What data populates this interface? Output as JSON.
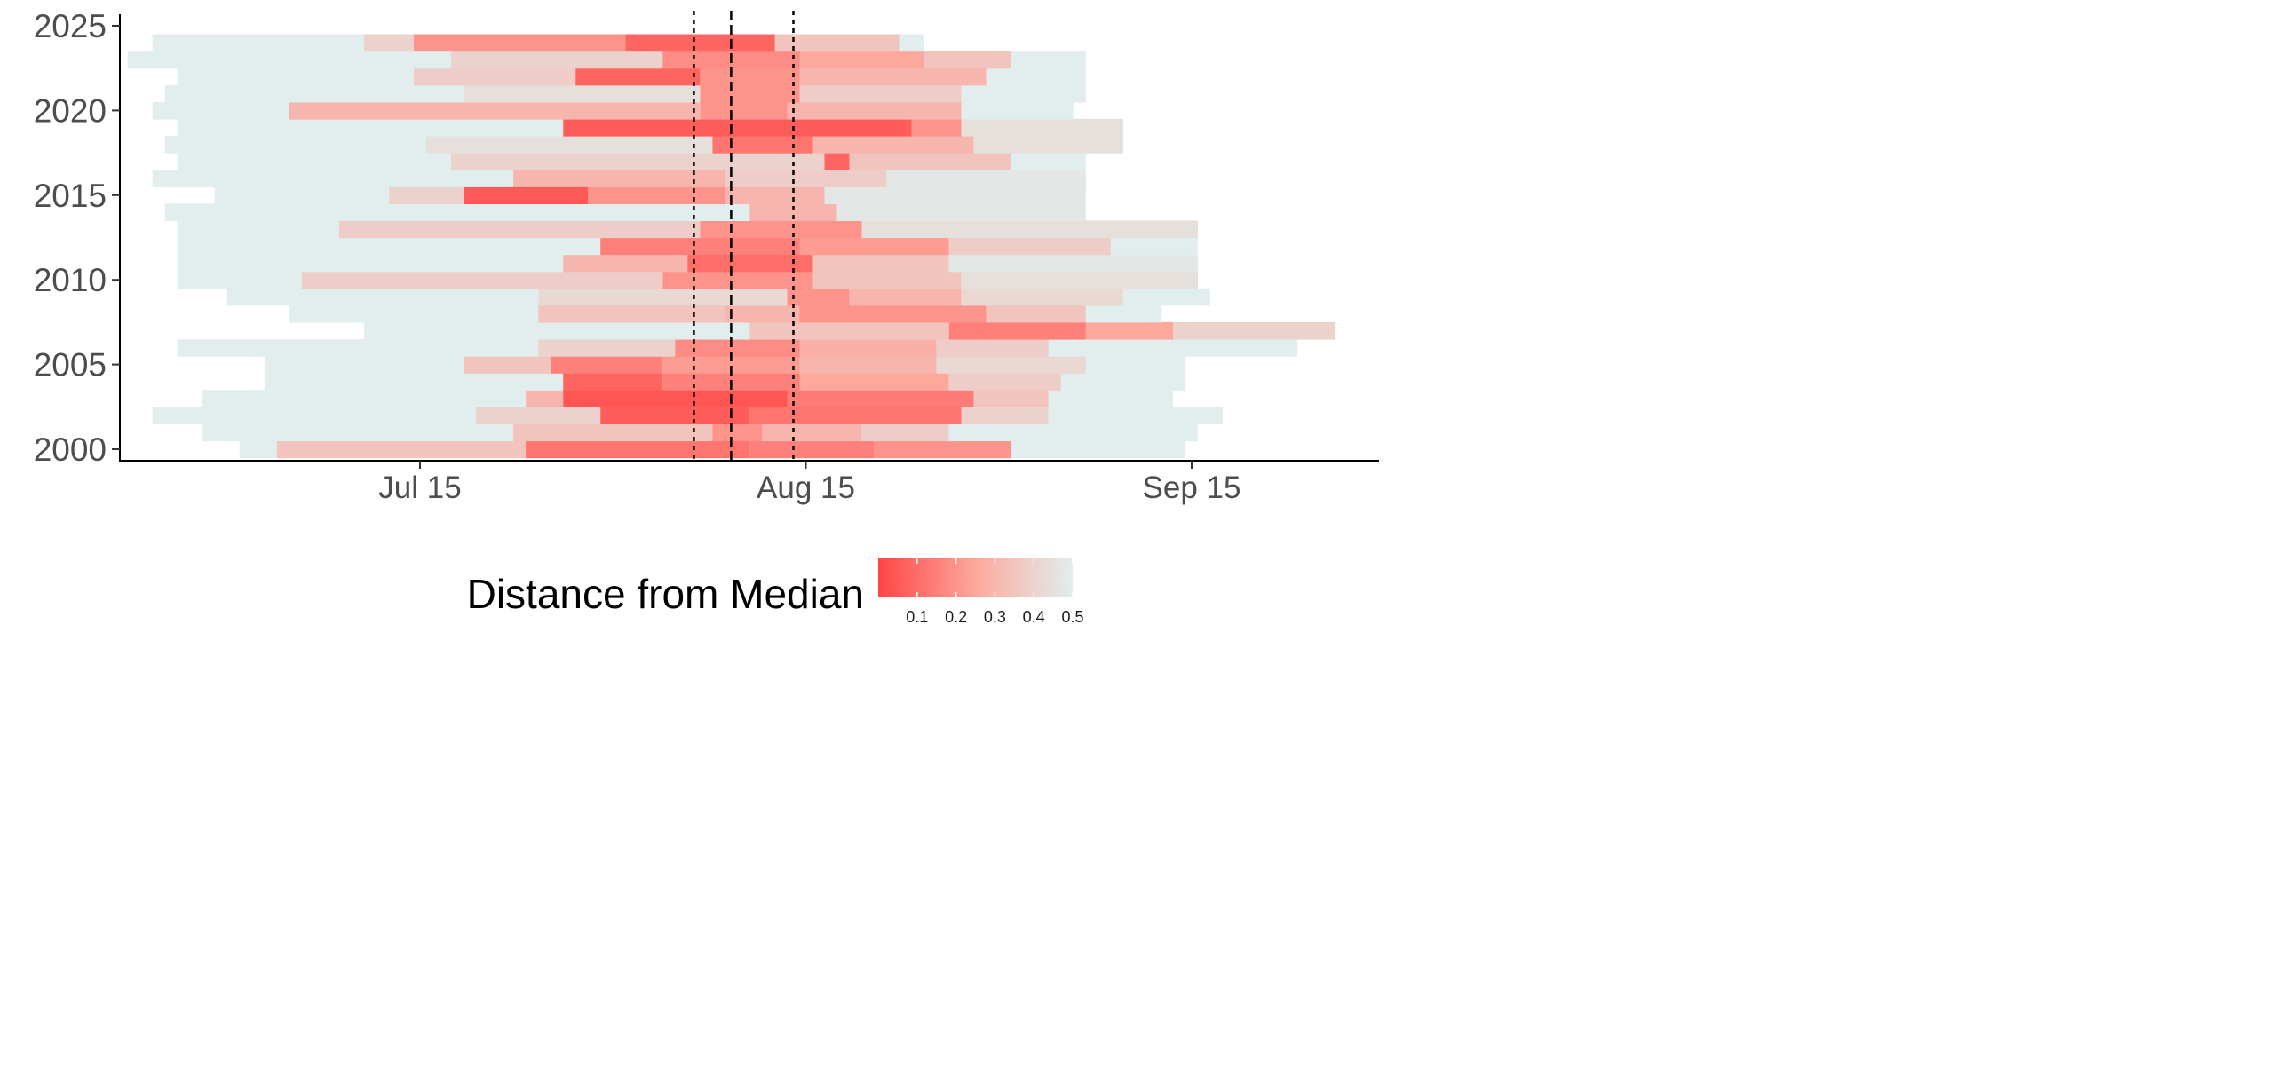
{
  "chart_data": {
    "type": "heatmap",
    "title": "",
    "xlabel": "",
    "ylabel": "",
    "x_axis": {
      "type": "date",
      "ticks": [
        "Jul 15",
        "Aug 15",
        "Sep 15"
      ],
      "range": [
        "Jun 21",
        "Sep 26"
      ]
    },
    "y_axis": {
      "ticks": [
        2000,
        2005,
        2010,
        2015,
        2020,
        2025
      ],
      "range": [
        1999.4,
        2025.8
      ]
    },
    "vlines": [
      {
        "date": "Aug 6",
        "style": "dotted"
      },
      {
        "date": "Aug 9",
        "style": "dashed"
      },
      {
        "date": "Aug 14",
        "style": "dotted"
      }
    ],
    "grid": false,
    "color_scale": {
      "low_color": "#ff4545",
      "high_color": "#e1eeed",
      "limits": [
        0,
        0.5
      ]
    },
    "rows": [
      {
        "year": 2000,
        "cells": [
          [
            "Jul 1",
            "Jul 3",
            0.5
          ],
          [
            "Jul 4",
            "Jul 23",
            0.35
          ],
          [
            "Jul 24",
            "Aug 10",
            0.12
          ],
          [
            "Aug 11",
            "Aug 20",
            0.15
          ],
          [
            "Aug 21",
            "Aug 31",
            0.2
          ],
          [
            "Sep 1",
            "Sep 14",
            0.5
          ]
        ]
      },
      {
        "year": 2001,
        "cells": [
          [
            "Jun 28",
            "Jul 22",
            0.5
          ],
          [
            "Jul 23",
            "Aug 7",
            0.35
          ],
          [
            "Aug 8",
            "Aug 11",
            0.2
          ],
          [
            "Aug 12",
            "Aug 19",
            0.3
          ],
          [
            "Aug 20",
            "Aug 26",
            0.38
          ],
          [
            "Aug 27",
            "Sep 15",
            0.5
          ]
        ]
      },
      {
        "year": 2002,
        "cells": [
          [
            "Jun 24",
            "Jul 19",
            0.5
          ],
          [
            "Jul 20",
            "Jul 29",
            0.4
          ],
          [
            "Jul 30",
            "Aug 10",
            0.06
          ],
          [
            "Aug 11",
            "Aug 27",
            0.12
          ],
          [
            "Aug 28",
            "Sep 3",
            0.4
          ],
          [
            "Sep 4",
            "Sep 17",
            0.5
          ]
        ]
      },
      {
        "year": 2003,
        "cells": [
          [
            "Jun 28",
            "Jul 23",
            0.5
          ],
          [
            "Jul 24",
            "Jul 26",
            0.3
          ],
          [
            "Jul 27",
            "Aug 13",
            0.04
          ],
          [
            "Aug 14",
            "Aug 28",
            0.14
          ],
          [
            "Aug 29",
            "Sep 3",
            0.35
          ],
          [
            "Sep 4",
            "Sep 13",
            0.5
          ]
        ]
      },
      {
        "year": 2004,
        "cells": [
          [
            "Jul 3",
            "Jul 26",
            0.5
          ],
          [
            "Jul 27",
            "Aug 3",
            0.08
          ],
          [
            "Aug 4",
            "Aug 14",
            0.15
          ],
          [
            "Aug 15",
            "Aug 26",
            0.25
          ],
          [
            "Aug 27",
            "Sep 4",
            0.38
          ],
          [
            "Sep 5",
            "Sep 14",
            0.5
          ]
        ]
      },
      {
        "year": 2005,
        "cells": [
          [
            "Jul 3",
            "Jul 18",
            0.5
          ],
          [
            "Jul 19",
            "Jul 25",
            0.35
          ],
          [
            "Jul 26",
            "Aug 3",
            0.15
          ],
          [
            "Aug 4",
            "Aug 14",
            0.22
          ],
          [
            "Aug 15",
            "Aug 25",
            0.3
          ],
          [
            "Aug 26",
            "Sep 6",
            0.42
          ],
          [
            "Sep 7",
            "Sep 14",
            0.5
          ]
        ]
      },
      {
        "year": 2006,
        "cells": [
          [
            "Jun 26",
            "Jul 24",
            0.5
          ],
          [
            "Jul 25",
            "Aug 4",
            0.4
          ],
          [
            "Aug 5",
            "Aug 14",
            0.18
          ],
          [
            "Aug 15",
            "Aug 25",
            0.28
          ],
          [
            "Aug 26",
            "Sep 3",
            0.38
          ],
          [
            "Sep 4",
            "Sep 23",
            0.5
          ]
        ]
      },
      {
        "year": 2007,
        "cells": [
          [
            "Jul 11",
            "Aug 10",
            0.5
          ],
          [
            "Aug 11",
            "Aug 26",
            0.35
          ],
          [
            "Aug 27",
            "Sep 6",
            0.15
          ],
          [
            "Sep 7",
            "Sep 13",
            0.25
          ],
          [
            "Sep 14",
            "Sep 26",
            0.4
          ]
        ]
      },
      {
        "year": 2008,
        "cells": [
          [
            "Jul 5",
            "Jul 24",
            0.5
          ],
          [
            "Jul 25",
            "Aug 8",
            0.35
          ],
          [
            "Aug 9",
            "Aug 14",
            0.3
          ],
          [
            "Aug 15",
            "Aug 29",
            0.2
          ],
          [
            "Aug 30",
            "Sep 6",
            0.35
          ],
          [
            "Sep 7",
            "Sep 12",
            0.5
          ]
        ]
      },
      {
        "year": 2009,
        "cells": [
          [
            "Jun 30",
            "Jul 24",
            0.5
          ],
          [
            "Jul 25",
            "Aug 13",
            0.42
          ],
          [
            "Aug 14",
            "Aug 18",
            0.2
          ],
          [
            "Aug 19",
            "Aug 27",
            0.3
          ],
          [
            "Aug 28",
            "Sep 9",
            0.42
          ],
          [
            "Sep 10",
            "Sep 16",
            0.5
          ]
        ]
      },
      {
        "year": 2010,
        "cells": [
          [
            "Jun 26",
            "Jul 5",
            0.5
          ],
          [
            "Jul 6",
            "Aug 3",
            0.38
          ],
          [
            "Aug 4",
            "Aug 15",
            0.2
          ],
          [
            "Aug 16",
            "Aug 27",
            0.35
          ],
          [
            "Aug 28",
            "Sep 15",
            0.45
          ]
        ]
      },
      {
        "year": 2011,
        "cells": [
          [
            "Jun 26",
            "Jul 26",
            0.5
          ],
          [
            "Jul 27",
            "Aug 5",
            0.3
          ],
          [
            "Aug 6",
            "Aug 15",
            0.1
          ],
          [
            "Aug 16",
            "Aug 26",
            0.35
          ],
          [
            "Aug 27",
            "Sep 15",
            0.48
          ]
        ]
      },
      {
        "year": 2012,
        "cells": [
          [
            "Jun 26",
            "Jul 29",
            0.5
          ],
          [
            "Jul 30",
            "Aug 14",
            0.15
          ],
          [
            "Aug 15",
            "Aug 26",
            0.22
          ],
          [
            "Aug 27",
            "Sep 8",
            0.38
          ],
          [
            "Sep 9",
            "Sep 15",
            0.5
          ]
        ]
      },
      {
        "year": 2013,
        "cells": [
          [
            "Jun 26",
            "Jul 8",
            0.5
          ],
          [
            "Jul 9",
            "Aug 6",
            0.38
          ],
          [
            "Aug 7",
            "Aug 19",
            0.2
          ],
          [
            "Aug 20",
            "Sep 15",
            0.45
          ]
        ]
      },
      {
        "year": 2014,
        "cells": [
          [
            "Jun 25",
            "Aug 10",
            0.5
          ],
          [
            "Aug 11",
            "Aug 17",
            0.3
          ],
          [
            "Aug 18",
            "Sep 6",
            0.48
          ]
        ]
      },
      {
        "year": 2015,
        "cells": [
          [
            "Jun 29",
            "Jul 12",
            0.5
          ],
          [
            "Jul 13",
            "Jul 18",
            0.4
          ],
          [
            "Jul 19",
            "Jul 28",
            0.05
          ],
          [
            "Jul 29",
            "Aug 8",
            0.2
          ],
          [
            "Aug 9",
            "Aug 16",
            0.3
          ],
          [
            "Aug 17",
            "Sep 6",
            0.48
          ]
        ]
      },
      {
        "year": 2016,
        "cells": [
          [
            "Jun 24",
            "Jul 22",
            0.5
          ],
          [
            "Jul 23",
            "Aug 8",
            0.3
          ],
          [
            "Aug 9",
            "Aug 21",
            0.38
          ],
          [
            "Aug 22",
            "Sep 6",
            0.48
          ]
        ]
      },
      {
        "year": 2017,
        "cells": [
          [
            "Jun 26",
            "Jul 17",
            0.5
          ],
          [
            "Jul 18",
            "Aug 16",
            0.4
          ],
          [
            "Aug 17",
            "Aug 18",
            0.08
          ],
          [
            "Aug 19",
            "Aug 31",
            0.35
          ],
          [
            "Sep 1",
            "Sep 6",
            0.5
          ]
        ]
      },
      {
        "year": 2018,
        "cells": [
          [
            "Jun 25",
            "Jul 15",
            0.5
          ],
          [
            "Jul 16",
            "Aug 7",
            0.45
          ],
          [
            "Aug 8",
            "Aug 15",
            0.12
          ],
          [
            "Aug 16",
            "Aug 28",
            0.3
          ],
          [
            "Aug 29",
            "Sep 9",
            0.45
          ]
        ]
      },
      {
        "year": 2019,
        "cells": [
          [
            "Jun 26",
            "Jul 26",
            0.5
          ],
          [
            "Jul 27",
            "Aug 23",
            0.06
          ],
          [
            "Aug 24",
            "Aug 27",
            0.2
          ],
          [
            "Aug 28",
            "Sep 9",
            0.45
          ]
        ]
      },
      {
        "year": 2020,
        "cells": [
          [
            "Jun 24",
            "Jul 4",
            0.5
          ],
          [
            "Jul 5",
            "Aug 6",
            0.3
          ],
          [
            "Aug 7",
            "Aug 13",
            0.2
          ],
          [
            "Aug 14",
            "Aug 27",
            0.3
          ],
          [
            "Aug 28",
            "Sep 5",
            0.5
          ]
        ]
      },
      {
        "year": 2021,
        "cells": [
          [
            "Jun 25",
            "Jul 18",
            0.5
          ],
          [
            "Jul 19",
            "Aug 6",
            0.45
          ],
          [
            "Aug 7",
            "Aug 14",
            0.2
          ],
          [
            "Aug 15",
            "Aug 27",
            0.38
          ],
          [
            "Aug 28",
            "Sep 6",
            0.5
          ]
        ]
      },
      {
        "year": 2022,
        "cells": [
          [
            "Jun 26",
            "Jul 14",
            0.5
          ],
          [
            "Jul 15",
            "Jul 27",
            0.38
          ],
          [
            "Jul 28",
            "Aug 6",
            0.08
          ],
          [
            "Aug 7",
            "Aug 14",
            0.2
          ],
          [
            "Aug 15",
            "Aug 29",
            0.3
          ],
          [
            "Aug 30",
            "Sep 6",
            0.5
          ]
        ]
      },
      {
        "year": 2023,
        "cells": [
          [
            "Jun 22",
            "Jul 17",
            0.5
          ],
          [
            "Jul 18",
            "Aug 3",
            0.4
          ],
          [
            "Aug 4",
            "Aug 14",
            0.18
          ],
          [
            "Aug 15",
            "Aug 24",
            0.25
          ],
          [
            "Aug 25",
            "Aug 31",
            0.35
          ],
          [
            "Sep 1",
            "Sep 6",
            0.5
          ]
        ]
      },
      {
        "year": 2024,
        "cells": [
          [
            "Jun 24",
            "Jul 10",
            0.5
          ],
          [
            "Jul 11",
            "Jul 14",
            0.4
          ],
          [
            "Jul 15",
            "Jul 31",
            0.2
          ],
          [
            "Aug 1",
            "Aug 12",
            0.08
          ],
          [
            "Aug 13",
            "Aug 22",
            0.35
          ],
          [
            "Aug 23",
            "Aug 24",
            0.5
          ]
        ]
      }
    ],
    "legend": {
      "title": "Distance from Median",
      "placement": "bottom",
      "ticks": [
        "0.1",
        "0.2",
        "0.3",
        "0.4",
        "0.5"
      ],
      "tick_values": [
        0.1,
        0.2,
        0.3,
        0.4,
        0.5
      ]
    }
  }
}
